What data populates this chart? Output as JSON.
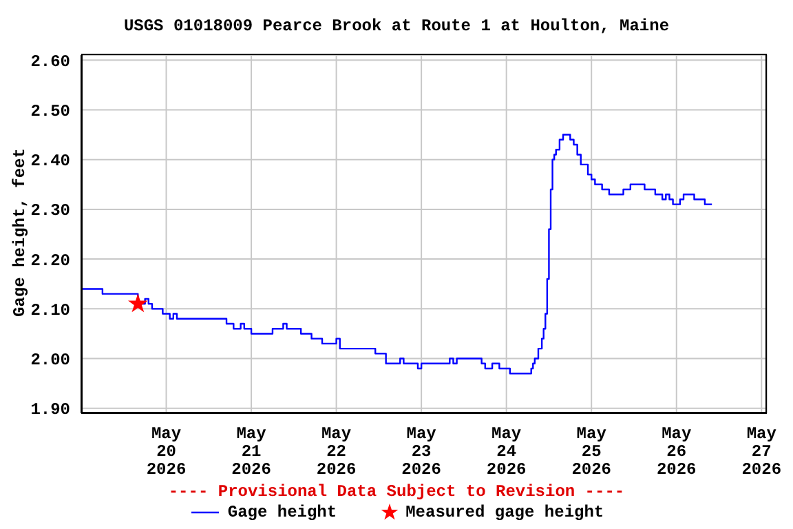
{
  "chart_data": {
    "type": "step",
    "title": "USGS 01018009 Pearce Brook at Route 1 at Houlton, Maine",
    "ylabel": "Gage height, feet",
    "annotations": [
      "---- Provisional Data Subject to Revision ----"
    ],
    "xlim": [
      "2026-05-19T00:00",
      "2026-05-27T01:30"
    ],
    "xticks": [
      {
        "value": "2026-05-20",
        "label": "May\n20\n2026"
      },
      {
        "value": "2026-05-21",
        "label": "May\n21\n2026"
      },
      {
        "value": "2026-05-22",
        "label": "May\n22\n2026"
      },
      {
        "value": "2026-05-23",
        "label": "May\n23\n2026"
      },
      {
        "value": "2026-05-24",
        "label": "May\n24\n2026"
      },
      {
        "value": "2026-05-25",
        "label": "May\n25\n2026"
      },
      {
        "value": "2026-05-26",
        "label": "May\n26\n2026"
      },
      {
        "value": "2026-05-27",
        "label": "May\n27\n2026"
      }
    ],
    "ylim": [
      1.89,
      2.61
    ],
    "yticks": [
      {
        "value": 1.9,
        "label": "1.90"
      },
      {
        "value": 2.0,
        "label": "2.00"
      },
      {
        "value": 2.1,
        "label": "2.10"
      },
      {
        "value": 2.2,
        "label": "2.20"
      },
      {
        "value": 2.3,
        "label": "2.30"
      },
      {
        "value": 2.4,
        "label": "2.40"
      },
      {
        "value": 2.5,
        "label": "2.50"
      },
      {
        "value": 2.6,
        "label": "2.60"
      }
    ],
    "grid": true,
    "legend": "bottom",
    "series": [
      {
        "name": "Gage height",
        "color": "#0000ff",
        "x": [
          "2026-05-19T00:00",
          "2026-05-19T06:00",
          "2026-05-19T16:00",
          "2026-05-19T18:00",
          "2026-05-19T19:00",
          "2026-05-19T20:00",
          "2026-05-19T23:00",
          "2026-05-20T01:00",
          "2026-05-20T02:00",
          "2026-05-20T03:00",
          "2026-05-20T17:00",
          "2026-05-20T19:00",
          "2026-05-20T21:00",
          "2026-05-20T22:00",
          "2026-05-21T00:00",
          "2026-05-21T06:00",
          "2026-05-21T09:00",
          "2026-05-21T10:00",
          "2026-05-21T14:00",
          "2026-05-21T17:00",
          "2026-05-21T20:00",
          "2026-05-22T00:00",
          "2026-05-22T01:00",
          "2026-05-22T11:00",
          "2026-05-22T14:00",
          "2026-05-22T18:00",
          "2026-05-22T19:00",
          "2026-05-22T23:00",
          "2026-05-23T00:00",
          "2026-05-23T08:00",
          "2026-05-23T09:00",
          "2026-05-23T10:00",
          "2026-05-23T17:00",
          "2026-05-23T18:00",
          "2026-05-23T20:00",
          "2026-05-23T22:00",
          "2026-05-24T01:00",
          "2026-05-24T07:00",
          "2026-05-24T07:30",
          "2026-05-24T08:00",
          "2026-05-24T09:00",
          "2026-05-24T10:00",
          "2026-05-24T10:30",
          "2026-05-24T11:00",
          "2026-05-24T11:30",
          "2026-05-24T12:00",
          "2026-05-24T12:30",
          "2026-05-24T13:00",
          "2026-05-24T13:30",
          "2026-05-24T14:00",
          "2026-05-24T15:00",
          "2026-05-24T16:00",
          "2026-05-24T18:00",
          "2026-05-24T19:00",
          "2026-05-24T20:00",
          "2026-05-24T21:00",
          "2026-05-24T23:00",
          "2026-05-25T00:00",
          "2026-05-25T01:00",
          "2026-05-25T03:00",
          "2026-05-25T05:00",
          "2026-05-25T09:00",
          "2026-05-25T11:00",
          "2026-05-25T15:00",
          "2026-05-25T18:00",
          "2026-05-25T20:00",
          "2026-05-25T21:00",
          "2026-05-25T22:00",
          "2026-05-25T23:00",
          "2026-05-26T01:00",
          "2026-05-26T02:00",
          "2026-05-26T05:00",
          "2026-05-26T08:00",
          "2026-05-26T10:00"
        ],
        "values": [
          2.14,
          2.13,
          2.11,
          2.12,
          2.11,
          2.1,
          2.09,
          2.08,
          2.09,
          2.08,
          2.07,
          2.06,
          2.07,
          2.06,
          2.05,
          2.06,
          2.07,
          2.06,
          2.05,
          2.04,
          2.03,
          2.04,
          2.02,
          2.01,
          1.99,
          2.0,
          1.99,
          1.98,
          1.99,
          2.0,
          1.99,
          2.0,
          1.99,
          1.98,
          1.99,
          1.98,
          1.97,
          1.98,
          1.99,
          2.0,
          2.02,
          2.04,
          2.06,
          2.09,
          2.16,
          2.26,
          2.34,
          2.4,
          2.41,
          2.42,
          2.44,
          2.45,
          2.44,
          2.43,
          2.41,
          2.39,
          2.37,
          2.36,
          2.35,
          2.34,
          2.33,
          2.34,
          2.35,
          2.34,
          2.33,
          2.32,
          2.33,
          2.32,
          2.31,
          2.32,
          2.33,
          2.32,
          2.31,
          2.31
        ]
      },
      {
        "name": "Measured gage height",
        "type": "scatter",
        "color": "#ff0000",
        "marker": "star",
        "x": [
          "2026-05-19T16:00"
        ],
        "values": [
          2.11
        ]
      }
    ]
  }
}
